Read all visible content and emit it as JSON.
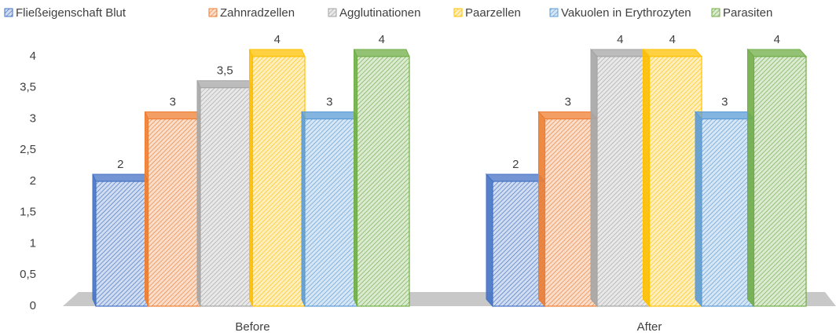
{
  "chart_data": {
    "type": "bar3d",
    "categories": [
      "Before",
      "After"
    ],
    "series": [
      {
        "name": "Fließeigenschaft Blut",
        "color": "#4472c4",
        "values": [
          2,
          2
        ]
      },
      {
        "name": "Zahnradzellen",
        "color": "#ed7d31",
        "values": [
          3,
          3
        ]
      },
      {
        "name": "Agglutinationen",
        "color": "#a5a5a5",
        "values": [
          3.5,
          4
        ],
        "value_labels": [
          "3,5",
          "4"
        ]
      },
      {
        "name": "Paarzellen",
        "color": "#ffc000",
        "values": [
          4,
          4
        ]
      },
      {
        "name": "Vakuolen in Erythrozyten",
        "color": "#5b9bd5",
        "values": [
          3,
          3
        ]
      },
      {
        "name": "Parasiten",
        "color": "#70ad47",
        "values": [
          4,
          4
        ]
      }
    ],
    "ylim": [
      0,
      4
    ],
    "yticks": [
      0,
      {
        "value": 0.5,
        "label": "0,5"
      },
      1,
      {
        "value": 1.5,
        "label": "1,5"
      },
      2,
      {
        "value": 2.5,
        "label": "2,5"
      },
      3,
      {
        "value": 3.5,
        "label": "3,5"
      },
      4
    ],
    "legend": "top"
  }
}
